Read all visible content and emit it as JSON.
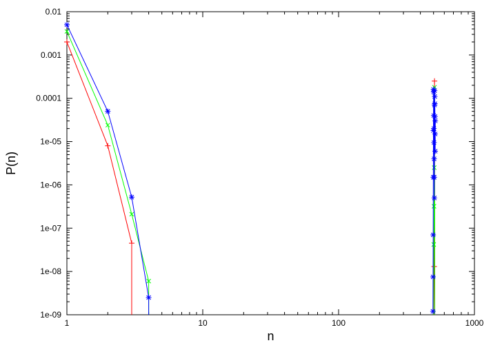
{
  "chart_data": {
    "type": "line",
    "xlabel": "n",
    "ylabel": "P(n)",
    "xscale": "log",
    "yscale": "log",
    "xlim": [
      1,
      1000
    ],
    "ylim": [
      1e-09,
      0.01
    ],
    "grid": false,
    "legend": "none",
    "x_tick_labels": [
      "1",
      "10",
      "100",
      "1000"
    ],
    "x_tick_values": [
      1,
      10,
      100,
      1000
    ],
    "y_tick_labels": [
      "0.01",
      "0.001",
      "0.0001",
      "1e-05",
      "1e-06",
      "1e-07",
      "1e-08",
      "1e-09"
    ],
    "y_tick_values": [
      0.01,
      0.001,
      0.0001,
      1e-05,
      1e-06,
      1e-07,
      1e-08,
      1e-09
    ],
    "series": [
      {
        "color": "#ff0000",
        "marker": "plus",
        "points": [
          [
            1,
            0.002
          ],
          [
            2,
            8e-06
          ],
          [
            3,
            4.5e-08
          ],
          [
            3,
            1e-09
          ]
        ],
        "spike_points": [
          [
            500,
            1e-09
          ],
          [
            505,
            1.3e-08
          ],
          [
            508,
            0.00025
          ],
          [
            510,
            1e-09
          ]
        ]
      },
      {
        "color": "#00ff00",
        "marker": "cross",
        "points": [
          [
            1,
            0.0035
          ],
          [
            2,
            2.4e-05
          ],
          [
            3,
            2.1e-07
          ],
          [
            4,
            6e-09
          ],
          [
            4,
            1e-09
          ]
        ],
        "spike_points": [
          [
            498,
            1e-09
          ],
          [
            502,
            4.2e-08
          ],
          [
            504,
            3.2e-07
          ],
          [
            506,
            2.5e-06
          ],
          [
            508,
            0.00018
          ],
          [
            510,
            1e-09
          ]
        ]
      },
      {
        "color": "#0000ff",
        "marker": "asterisk",
        "points": [
          [
            1,
            0.005
          ],
          [
            2,
            5e-05
          ],
          [
            3,
            5.2e-07
          ],
          [
            4,
            2.5e-09
          ],
          [
            4,
            1e-09
          ]
        ],
        "spike_points": [
          [
            495,
            1.2e-09
          ],
          [
            496,
            7.5e-09
          ],
          [
            497,
            7e-08
          ],
          [
            498,
            1.5e-06
          ],
          [
            499,
            1.8e-05
          ],
          [
            500,
            0.00016
          ],
          [
            501,
            0.00014
          ],
          [
            502,
            4e-05
          ],
          [
            503,
            2e-05
          ],
          [
            504,
            9.5e-06
          ],
          [
            505,
            4e-06
          ],
          [
            506,
            1.5e-06
          ],
          [
            507,
            5e-07
          ],
          [
            508,
            7e-05
          ],
          [
            509,
            0.00015
          ],
          [
            510,
            0.00011
          ],
          [
            511,
            7.5e-05
          ],
          [
            512,
            3.8e-05
          ],
          [
            513,
            1.5e-05
          ],
          [
            514,
            6e-06
          ],
          [
            515,
            3e-05
          ]
        ]
      }
    ]
  }
}
